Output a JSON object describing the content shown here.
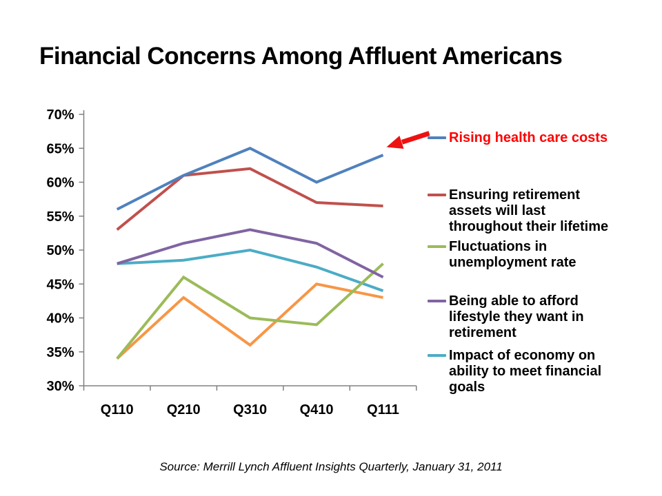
{
  "title": "Financial Concerns Among Affluent Americans",
  "source_caption": "Source: Merrill Lynch Affluent Insights Quarterly, January 31, 2011",
  "chart_data": {
    "type": "line",
    "title": "Financial Concerns Among Affluent Americans",
    "categories": [
      "Q110",
      "Q210",
      "Q310",
      "Q410",
      "Q111"
    ],
    "y_axis": {
      "min": 30,
      "max": 70,
      "step": 5,
      "tick_labels": [
        "70%",
        "65%",
        "60%",
        "55%",
        "50%",
        "45%",
        "40%",
        "35%",
        "30%"
      ]
    },
    "grid": false,
    "legend_position": "right",
    "series": [
      {
        "name": "Rising health care costs",
        "color": "#4F81BD",
        "values": [
          56,
          61,
          65,
          60,
          64
        ],
        "legend_lines": [
          "Rising health care costs"
        ],
        "legend_text_color": "#FF0000"
      },
      {
        "name": "Ensuring retirement assets will last throughout their lifetime",
        "color": "#C0504D",
        "values": [
          53,
          61,
          62,
          57,
          56.5
        ],
        "legend_lines": [
          "Ensuring retirement",
          "assets will last",
          "throughout their lifetime"
        ],
        "legend_text_color": "#000000"
      },
      {
        "name": "Fluctuations in unemployment rate",
        "color": "#9BBB59",
        "values": [
          34,
          46,
          40,
          39,
          48
        ],
        "legend_lines": [
          "Fluctuations in",
          "unemployment rate"
        ],
        "legend_text_color": "#000000"
      },
      {
        "name": "Being able to afford lifestyle they want in retirement",
        "color": "#8064A2",
        "values": [
          48,
          51,
          53,
          51,
          46
        ],
        "legend_lines": [
          "Being able to afford",
          "lifestyle they want in",
          "retirement"
        ],
        "legend_text_color": "#000000"
      },
      {
        "name": "Impact of economy on ability to meet financial goals",
        "color": "#4BACC6",
        "values": [
          48,
          48.5,
          50,
          47.5,
          44
        ],
        "legend_lines": [
          "Impact of economy on",
          "ability to meet financial",
          "goals"
        ],
        "legend_text_color": "#000000"
      },
      {
        "name": "",
        "color": "#F79646",
        "values": [
          34,
          43,
          36,
          45,
          43
        ],
        "legend_lines": [],
        "legend_text_color": null
      }
    ],
    "annotation": {
      "type": "arrow",
      "points_to_series": "Rising health care costs",
      "color": "#EE1111"
    }
  }
}
